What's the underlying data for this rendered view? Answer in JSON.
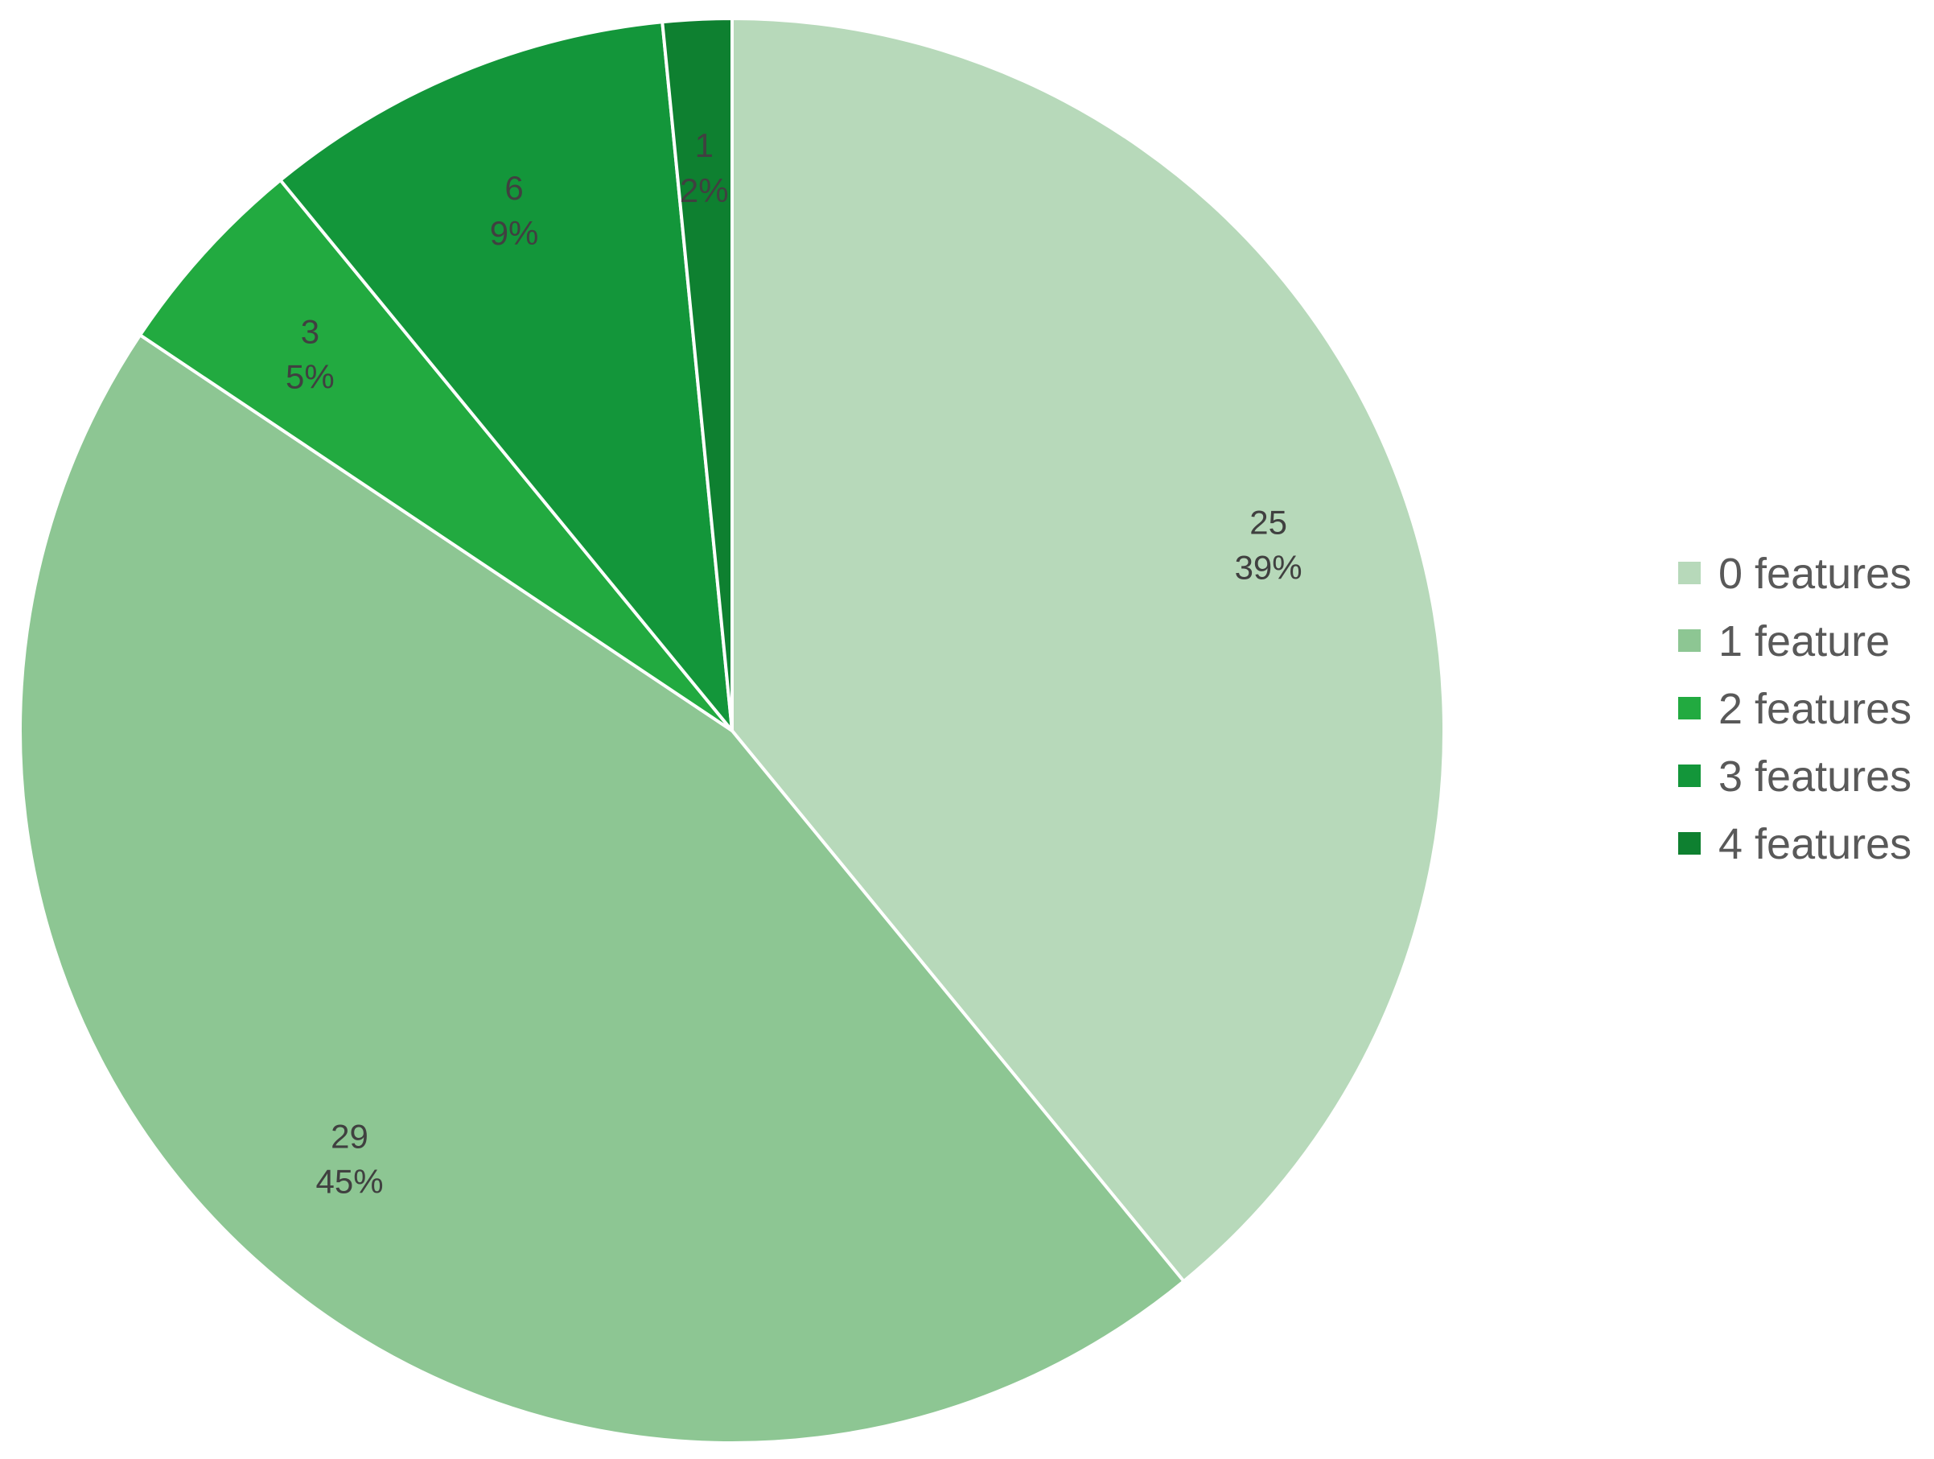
{
  "chart_data": {
    "type": "pie",
    "title": "",
    "slices": [
      {
        "label": "0 features",
        "value": 25,
        "percent_label": "39%",
        "color": "#b7d9ba"
      },
      {
        "label": "1 feature",
        "value": 29,
        "percent_label": "45%",
        "color": "#8dc693"
      },
      {
        "label": "2 features",
        "value": 3,
        "percent_label": "5%",
        "color": "#22aa40"
      },
      {
        "label": "3 features",
        "value": 6,
        "percent_label": "9%",
        "color": "#13963a"
      },
      {
        "label": "4 features",
        "value": 1,
        "percent_label": "2%",
        "color": "#0e8030"
      }
    ],
    "start_angle": "12 o'clock",
    "direction": "clockwise",
    "legend_position": "right",
    "slice_separator_color": "#ffffff"
  }
}
